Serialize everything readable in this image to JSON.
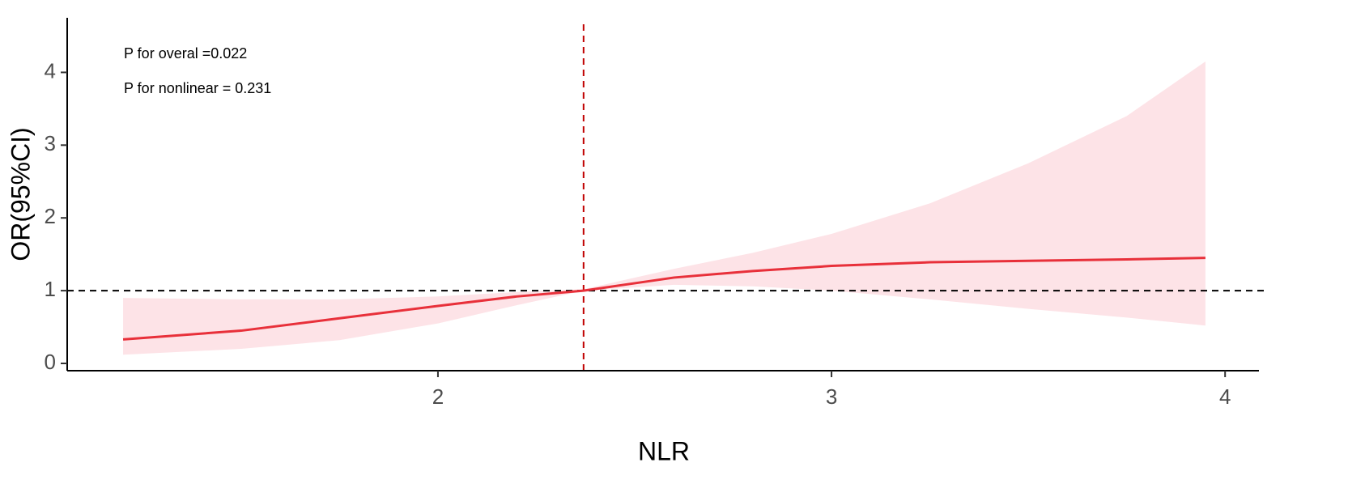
{
  "chart_data": {
    "type": "line",
    "xlabel": "NLR",
    "ylabel": "OR(95%CI)",
    "annotations": [
      "P for overal =0.022",
      "P for nonlinear = 0.231"
    ],
    "x": [
      1.2,
      1.5,
      1.75,
      2.0,
      2.2,
      2.37,
      2.6,
      2.8,
      3.0,
      3.25,
      3.5,
      3.75,
      3.95
    ],
    "values": [
      0.33,
      0.45,
      0.62,
      0.79,
      0.92,
      1.0,
      1.18,
      1.27,
      1.34,
      1.39,
      1.41,
      1.43,
      1.45
    ],
    "lower": [
      0.12,
      0.2,
      0.32,
      0.55,
      0.8,
      1.0,
      1.08,
      1.06,
      1.0,
      0.88,
      0.75,
      0.63,
      0.52
    ],
    "upper": [
      0.9,
      0.88,
      0.88,
      0.92,
      0.98,
      1.02,
      1.3,
      1.52,
      1.78,
      2.2,
      2.75,
      3.4,
      4.15
    ],
    "color": "#e8303a",
    "band_color": "#fde3e7",
    "ref_y": 1,
    "ref_y_color": "#000000",
    "ref_x": 2.37,
    "ref_x_color": "#c00000",
    "xlim": [
      1.058,
      4.086
    ],
    "ylim": [
      -0.1,
      4.75
    ],
    "xticks": [
      2,
      3,
      4
    ],
    "yticks": [
      0,
      1,
      2,
      3,
      4
    ],
    "grid": false
  }
}
